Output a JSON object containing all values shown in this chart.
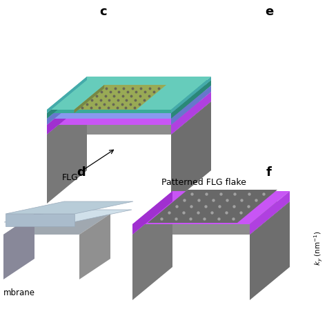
{
  "bg_color": "#ffffff",
  "label_c": "c",
  "label_d": "d",
  "label_e": "e",
  "label_f": "f",
  "flg_label": "FLG",
  "patterned_label": "Patterned FLG flake",
  "membrane_label": "mbrane",
  "colors": {
    "gray_top": "#8c8c8c",
    "gray_left": "#787878",
    "gray_right": "#6e6e6e",
    "purple_top": "#c855f5",
    "purple_left": "#a030d0",
    "purple_right": "#b040e0",
    "blue_top": "#8899ee",
    "blue_left": "#6677cc",
    "teal_top": "#3aaa99",
    "teal_left": "#2a8878",
    "cyan_top": "#66ccbb",
    "cyan_left": "#44aaaa",
    "olive_top": "#99aa55",
    "olive_left": "#778844",
    "dot_color": "#666655",
    "mem_blue": "#b8ccd8",
    "mem_blue2": "#d0e0ea",
    "mem_gray": "#a0a8b0"
  }
}
